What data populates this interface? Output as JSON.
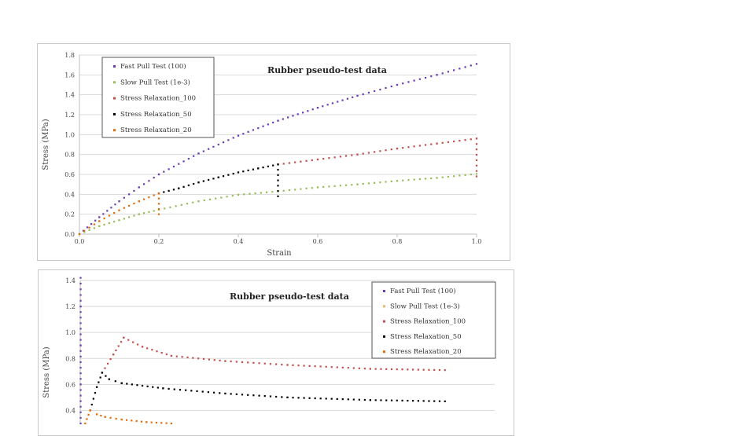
{
  "chart_data": [
    {
      "type": "scatter",
      "title": "Rubber pseudo-test data",
      "xlabel": "Strain",
      "ylabel": "Stress (MPa)",
      "xlim": [
        0,
        1.0
      ],
      "ylim": [
        0,
        1.8
      ],
      "xticks": [
        "0.0",
        "0.2",
        "0.4",
        "0.6",
        "0.8",
        "1.0"
      ],
      "yticks": [
        "0.0",
        "0.2",
        "0.4",
        "0.6",
        "0.8",
        "1.0",
        "1.2",
        "1.4",
        "1.6",
        "1.8"
      ],
      "grid": true,
      "legend_position": "top-left",
      "series": [
        {
          "name": "Fast Pull Test (100)",
          "color": "#6a3cb4",
          "points": [
            [
              0,
              0
            ],
            [
              0.05,
              0.17
            ],
            [
              0.1,
              0.33
            ],
            [
              0.15,
              0.47
            ],
            [
              0.2,
              0.6
            ],
            [
              0.3,
              0.81
            ],
            [
              0.4,
              0.99
            ],
            [
              0.5,
              1.14
            ],
            [
              0.6,
              1.27
            ],
            [
              0.7,
              1.39
            ],
            [
              0.8,
              1.5
            ],
            [
              0.9,
              1.6
            ],
            [
              1.0,
              1.71
            ]
          ]
        },
        {
          "name": "Slow Pull Test (1e-3)",
          "color": "#9bbb59",
          "points": [
            [
              0,
              0
            ],
            [
              0.05,
              0.08
            ],
            [
              0.1,
              0.14
            ],
            [
              0.15,
              0.2
            ],
            [
              0.2,
              0.245
            ],
            [
              0.3,
              0.33
            ],
            [
              0.4,
              0.395
            ],
            [
              0.5,
              0.43
            ],
            [
              0.6,
              0.47
            ],
            [
              0.7,
              0.5
            ],
            [
              0.8,
              0.535
            ],
            [
              0.9,
              0.565
            ],
            [
              1.0,
              0.605
            ]
          ]
        },
        {
          "name": "Stress Relaxation_100",
          "color": "#c0504d",
          "points": [
            [
              0.5,
              0.7
            ],
            [
              0.6,
              0.75
            ],
            [
              0.7,
              0.8
            ],
            [
              0.8,
              0.86
            ],
            [
              0.9,
              0.91
            ],
            [
              1.0,
              0.96
            ],
            [
              1.0,
              0.58
            ]
          ]
        },
        {
          "name": "Stress Relaxation_50",
          "color": "#000000",
          "points": [
            [
              0.2,
              0.41
            ],
            [
              0.25,
              0.46
            ],
            [
              0.3,
              0.52
            ],
            [
              0.35,
              0.57
            ],
            [
              0.4,
              0.62
            ],
            [
              0.45,
              0.66
            ],
            [
              0.5,
              0.7
            ],
            [
              0.5,
              0.38
            ]
          ]
        },
        {
          "name": "Stress Relaxation_20",
          "color": "#e46c0a",
          "points": [
            [
              0,
              0
            ],
            [
              0.05,
              0.13
            ],
            [
              0.1,
              0.24
            ],
            [
              0.15,
              0.33
            ],
            [
              0.2,
              0.41
            ],
            [
              0.2,
              0.2
            ]
          ]
        }
      ]
    },
    {
      "type": "scatter",
      "title": "Rubber pseudo-test data",
      "xlabel": "",
      "ylabel": "Stress (MPa)",
      "xlim": [
        0,
        100
      ],
      "ylim": [
        0.3,
        1.4
      ],
      "yticks": [
        "0.4",
        "0.6",
        "0.8",
        "1.0",
        "1.2",
        "1.4"
      ],
      "grid": true,
      "legend_position": "top-right",
      "series": [
        {
          "name": "Fast Pull Test (100)",
          "color": "#6a3cb4",
          "points": [
            [
              0.1,
              0.3
            ],
            [
              0.1,
              0.6
            ],
            [
              0.1,
              0.9
            ],
            [
              0.1,
              1.2
            ],
            [
              0.1,
              1.42
            ]
          ]
        },
        {
          "name": "Slow Pull Test (1e-3)",
          "color": "#e8b26a",
          "points": [
            [
              1.2,
              0.3
            ],
            [
              2.4,
              0.4
            ]
          ]
        },
        {
          "name": "Stress Relaxation_100",
          "color": "#c0504d",
          "points": [
            [
              5.3,
              0.69
            ],
            [
              8,
              0.83
            ],
            [
              10.5,
              0.96
            ],
            [
              15,
              0.89
            ],
            [
              22,
              0.82
            ],
            [
              35,
              0.78
            ],
            [
              50,
              0.75
            ],
            [
              70,
              0.72
            ],
            [
              88,
              0.71
            ]
          ]
        },
        {
          "name": "Stress Relaxation_50",
          "color": "#000000",
          "points": [
            [
              2.4,
              0.4
            ],
            [
              4,
              0.58
            ],
            [
              5.3,
              0.69
            ],
            [
              7,
              0.64
            ],
            [
              10,
              0.61
            ],
            [
              20,
              0.57
            ],
            [
              35,
              0.53
            ],
            [
              50,
              0.5
            ],
            [
              70,
              0.48
            ],
            [
              88,
              0.47
            ]
          ]
        },
        {
          "name": "Stress Relaxation_20",
          "color": "#e46c0a",
          "points": [
            [
              1.2,
              0.3
            ],
            [
              2.4,
              0.4
            ],
            [
              4,
              0.37
            ],
            [
              6,
              0.35
            ],
            [
              10,
              0.33
            ],
            [
              16,
              0.31
            ],
            [
              22,
              0.3
            ]
          ]
        }
      ]
    }
  ]
}
